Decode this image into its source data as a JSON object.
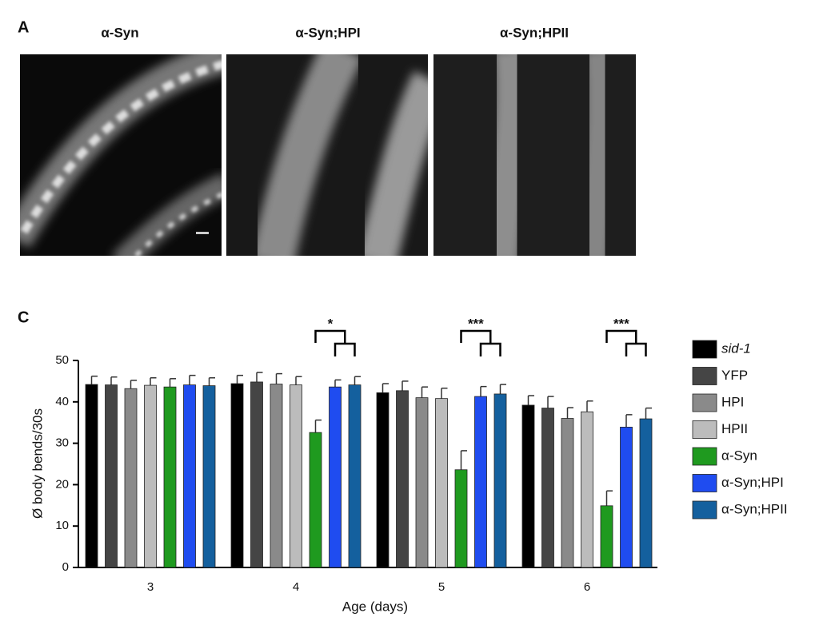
{
  "panel_a": {
    "label": "A",
    "titles": [
      "α-Syn",
      "α-Syn;HPI",
      "α-Syn;HPII"
    ]
  },
  "panel_c": {
    "label": "C"
  },
  "chart_data": {
    "type": "bar",
    "xlabel": "Age (days)",
    "ylabel": "Ø body bends/30s",
    "categories": [
      "3",
      "4",
      "5",
      "6"
    ],
    "ylim": [
      0,
      50
    ],
    "yticks": [
      0,
      10,
      20,
      30,
      40,
      50
    ],
    "series": [
      {
        "name": "sid-1",
        "color": "#000000",
        "values": [
          44.2,
          44.4,
          42.2,
          39.2
        ],
        "errors": [
          2.0,
          2.0,
          2.2,
          2.3
        ]
      },
      {
        "name": "YFP",
        "color": "#454545",
        "values": [
          44.1,
          44.8,
          42.7,
          38.5
        ],
        "errors": [
          1.9,
          2.3,
          2.3,
          2.8
        ]
      },
      {
        "name": "HPI",
        "color": "#8a8a8a",
        "values": [
          43.2,
          44.3,
          41.0,
          36.0
        ],
        "errors": [
          2.0,
          2.5,
          2.6,
          2.6
        ]
      },
      {
        "name": "HPII",
        "color": "#bcbcbc",
        "values": [
          44.0,
          44.1,
          40.8,
          37.6
        ],
        "errors": [
          1.8,
          2.0,
          2.5,
          2.6
        ]
      },
      {
        "name": "α-Syn",
        "color": "#1f9a1f",
        "values": [
          43.6,
          32.6,
          23.6,
          14.9
        ],
        "errors": [
          2.0,
          3.0,
          4.6,
          3.6
        ]
      },
      {
        "name": "α-Syn;HPI",
        "color": "#1f4cf0",
        "values": [
          44.1,
          43.6,
          41.3,
          33.9
        ],
        "errors": [
          2.3,
          1.7,
          2.4,
          3.0
        ]
      },
      {
        "name": "α-Syn;HPII",
        "color": "#14609e",
        "values": [
          43.9,
          44.1,
          41.9,
          35.9
        ],
        "errors": [
          1.9,
          2.0,
          2.3,
          2.6
        ]
      }
    ],
    "annotations": [
      {
        "category": "4",
        "text": "*"
      },
      {
        "category": "5",
        "text": "***"
      },
      {
        "category": "6",
        "text": "***"
      }
    ]
  }
}
